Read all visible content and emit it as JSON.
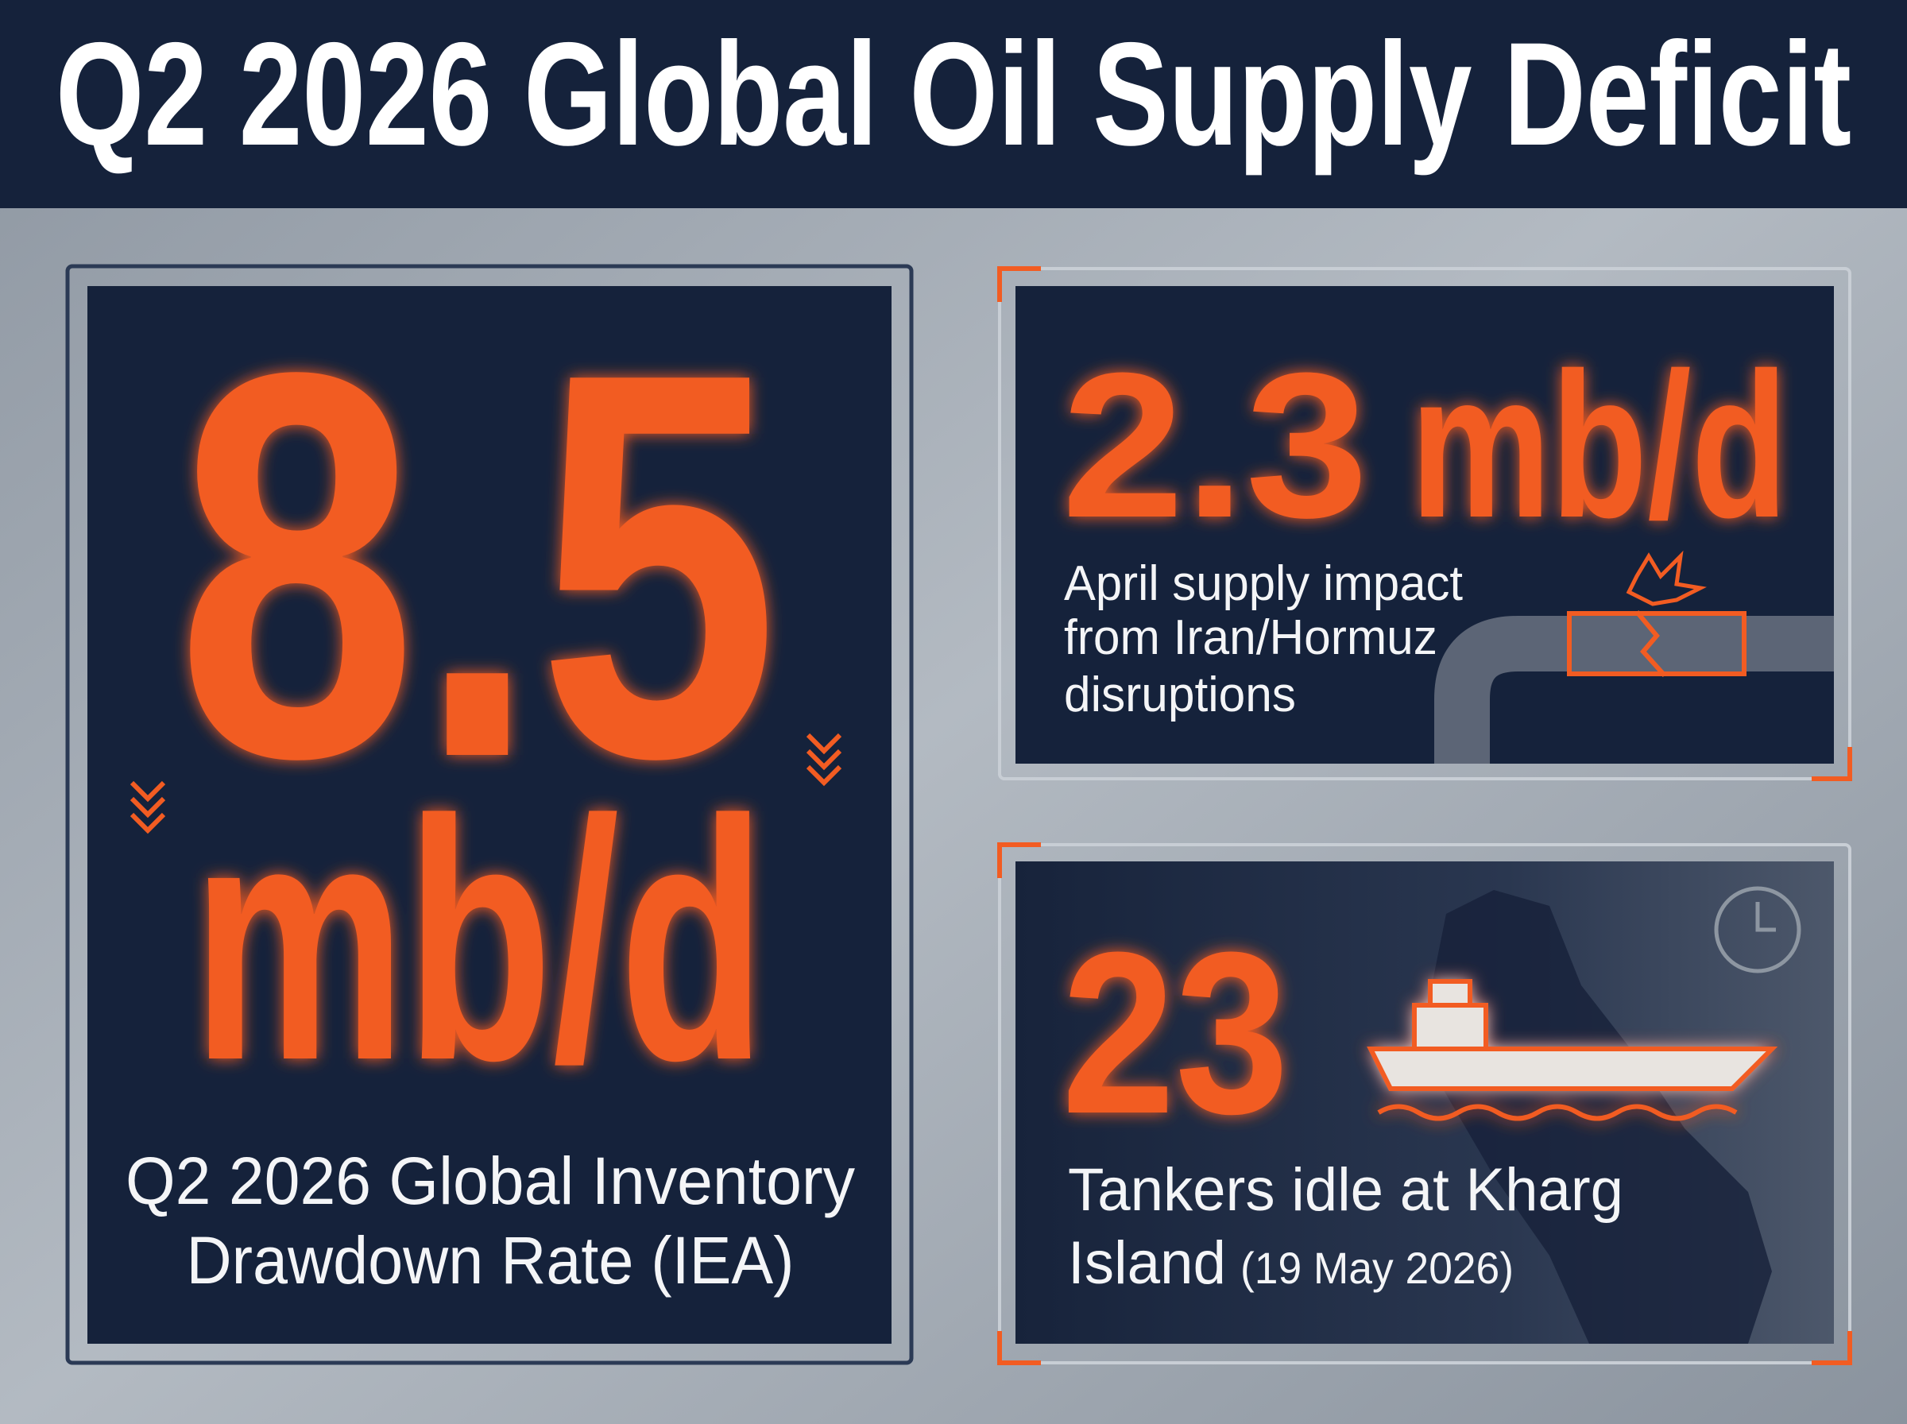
{
  "header": {
    "title": "Q2 2026 Global Oil Supply Deficit"
  },
  "cards": [
    {
      "value": "8.5",
      "unit": "mb/d",
      "label_lines": [
        "Q2 2026 Global Inventory",
        "Drawdown Rate (IEA)"
      ]
    },
    {
      "value": "2.3",
      "unit": "mb/d",
      "label_lines": [
        "April supply impact",
        "from Iran/Hormuz",
        "disruptions"
      ]
    },
    {
      "value": "23",
      "label_lines": [
        "Tankers idle at Kharg",
        "Island"
      ],
      "note": "(19 May 2026)"
    }
  ]
}
